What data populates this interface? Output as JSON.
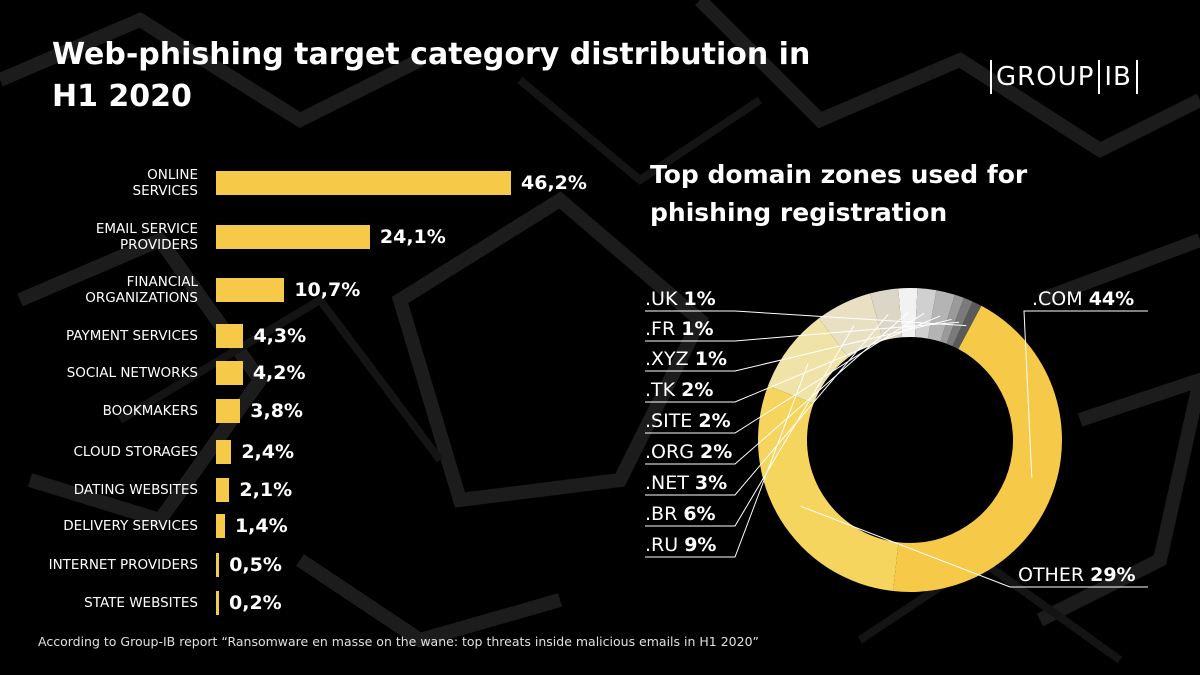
{
  "title": "Web-phishing target category distribution in H1 2020",
  "logo": {
    "left": "GROUP",
    "right": "IB"
  },
  "chart_data": [
    {
      "type": "bar",
      "title": "Web-phishing target category distribution in H1 2020",
      "categories": [
        "ONLINE SERVICES",
        "EMAIL SERVICE PROVIDERS",
        "FINANCIAL ORGANIZATIONS",
        "PAYMENT SERVICES",
        "SOCIAL NETWORKS",
        "BOOKMAKERS",
        "CLOUD STORAGES",
        "DATING WEBSITES",
        "DELIVERY SERVICES",
        "INTERNET PROVIDERS",
        "STATE WEBSITES"
      ],
      "labels_display": [
        [
          "ONLINE",
          "SERVICES"
        ],
        [
          "EMAIL SERVICE",
          "PROVIDERS"
        ],
        [
          "FINANCIAL",
          "ORGANIZATIONS"
        ],
        [
          "PAYMENT SERVICES"
        ],
        [
          "SOCIAL NETWORKS"
        ],
        [
          "BOOKMAKERS"
        ],
        [
          "CLOUD STORAGES"
        ],
        [
          "DATING WEBSITES"
        ],
        [
          "DELIVERY SERVICES"
        ],
        [
          "INTERNET PROVIDERS"
        ],
        [
          "STATE WEBSITES"
        ]
      ],
      "values": [
        46.2,
        24.1,
        10.7,
        4.3,
        4.2,
        3.8,
        2.4,
        2.1,
        1.4,
        0.5,
        0.2
      ],
      "value_labels": [
        "46,2%",
        "24,1%",
        "10,7%",
        "4,3%",
        "4,2%",
        "3,8%",
        "2,4%",
        "2,1%",
        "1,4%",
        "0,5%",
        "0,2%"
      ],
      "orientation": "horizontal",
      "color": "#f7c948"
    },
    {
      "type": "pie",
      "title": "Top domain zones used for phishing registration",
      "donut": true,
      "slices": [
        {
          "name": ".COM",
          "value": 44,
          "label": "44%",
          "color": "#f7c948"
        },
        {
          "name": "OTHER",
          "value": 29,
          "label": "29%",
          "color": "#f5d55e"
        },
        {
          "name": ".RU",
          "value": 9,
          "label": "9%",
          "color": "#efe3a8"
        },
        {
          "name": ".BR",
          "value": 6,
          "label": "6%",
          "color": "#e9e0c4"
        },
        {
          "name": ".NET",
          "value": 3,
          "label": "3%",
          "color": "#dcd6c6"
        },
        {
          "name": ".ORG",
          "value": 2,
          "label": "2%",
          "color": "#f2f2f2"
        },
        {
          "name": ".SITE",
          "value": 2,
          "label": "2%",
          "color": "#d0d0d0"
        },
        {
          "name": ".TK",
          "value": 2,
          "label": "2%",
          "color": "#b4b4b4"
        },
        {
          "name": ".XYZ",
          "value": 1,
          "label": "1%",
          "color": "#9a9a9a"
        },
        {
          "name": ".FR",
          "value": 1,
          "label": "1%",
          "color": "#7a7a7a"
        },
        {
          "name": ".UK",
          "value": 1,
          "label": "1%",
          "color": "#5a5a5a"
        }
      ]
    }
  ],
  "footnote": "According to Group-IB report “Ransomware en masse on the wane: top threats inside malicious emails in H1 2020”"
}
